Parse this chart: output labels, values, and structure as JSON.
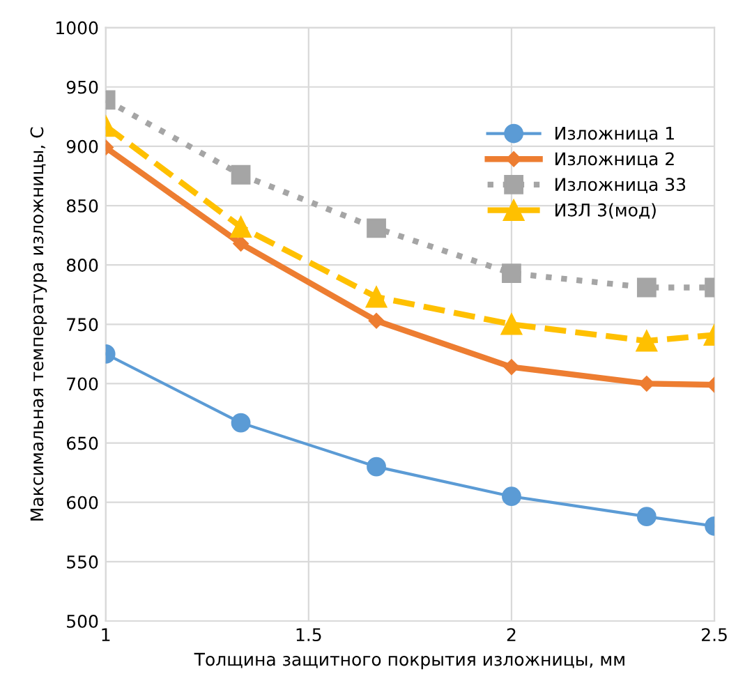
{
  "chart_data": {
    "type": "line",
    "xlabel": "Толщина защитного покрытия изложницы, мм",
    "ylabel": "Максимальная температура изложницы, С",
    "x": [
      1,
      1.333,
      1.667,
      2,
      2.333,
      2.5
    ],
    "series": [
      {
        "name": "Изложница 1",
        "color": "#5b9bd5",
        "marker": "circle",
        "line_style": "solid",
        "values": [
          725,
          667,
          630,
          605,
          588,
          580
        ]
      },
      {
        "name": "Изложница 2",
        "color": "#ed7d31",
        "marker": "diamond",
        "line_style": "solid",
        "values": [
          899,
          818,
          753,
          714,
          700,
          699
        ]
      },
      {
        "name": "Изложница 33",
        "color": "#a5a5a5",
        "marker": "square",
        "line_style": "dotted",
        "values": [
          939,
          876,
          831,
          793,
          781,
          781
        ]
      },
      {
        "name": "ИЗЛ 3(мод)",
        "color": "#ffc000",
        "marker": "triangle",
        "line_style": "dashed",
        "values": [
          917,
          832,
          773,
          750,
          736,
          741
        ]
      }
    ],
    "xlim": [
      1,
      2.5
    ],
    "xticks": [
      1,
      1.5,
      2,
      2.5
    ],
    "ylim": [
      500,
      1000
    ],
    "yticks": [
      500,
      550,
      600,
      650,
      700,
      750,
      800,
      850,
      900,
      950,
      1000
    ],
    "grid": true,
    "legend": "top right"
  }
}
